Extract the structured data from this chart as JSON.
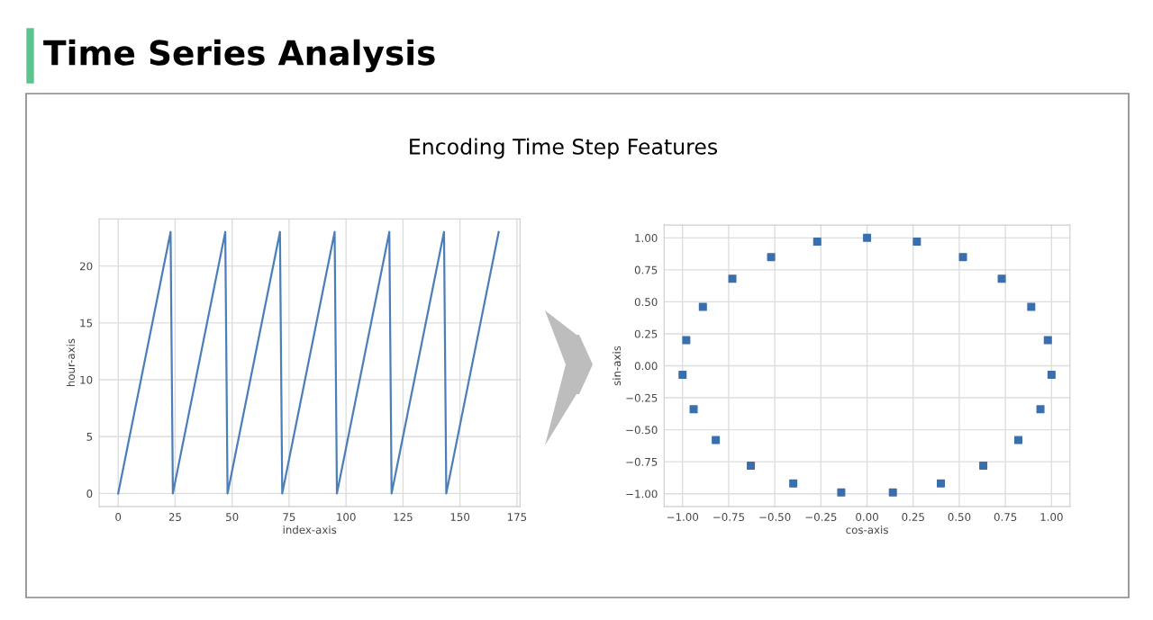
{
  "chart_data": [
    {
      "type": "line",
      "title": "Time Series Analysis",
      "subtitle": "Encoding Time Step Features",
      "xlabel": "index-axis",
      "ylabel": "hour-axis",
      "series": [
        {
          "color": "#4c7fb8",
          "x": [
            0,
            23,
            24,
            47,
            48,
            71,
            72,
            95,
            96,
            119,
            120,
            143,
            144,
            167
          ],
          "values": [
            0,
            23,
            0,
            23,
            0,
            23,
            0,
            23,
            0,
            23,
            0,
            23,
            0,
            23
          ]
        }
      ],
      "xlim": [
        -8.35,
        176.35
      ],
      "ylim": [
        -1.15,
        24.15
      ],
      "xticks": [
        0,
        25,
        50,
        75,
        100,
        125,
        150,
        175
      ],
      "yticks": [
        0,
        5,
        10,
        15,
        20
      ],
      "grid": true,
      "marker": "none",
      "line_style": "solid"
    },
    {
      "type": "scatter",
      "xlabel": "cos-axis",
      "ylabel": "sin-axis",
      "series": [
        {
          "color": "#3a6fae",
          "x": [
            0,
            0.27,
            0.52,
            0.73,
            0.89,
            0.98,
            1.0,
            0.94,
            0.82,
            0.63,
            0.4,
            0.14,
            -0.14,
            -0.4,
            -0.63,
            -0.82,
            -0.94,
            -1.0,
            -0.98,
            -0.89,
            -0.73,
            -0.52,
            -0.27
          ],
          "values": [
            1.0,
            0.97,
            0.85,
            0.68,
            0.46,
            0.2,
            -0.07,
            -0.34,
            -0.58,
            -0.78,
            -0.92,
            -0.99,
            -0.99,
            -0.92,
            -0.78,
            -0.58,
            -0.34,
            -0.07,
            0.2,
            0.46,
            0.68,
            0.85,
            0.97
          ]
        }
      ],
      "xlim": [
        -1.1,
        1.1
      ],
      "ylim": [
        -1.1,
        1.1
      ],
      "xticks": [
        {
          "value": -1.0,
          "label": "−1.00"
        },
        {
          "value": -0.75,
          "label": "−0.75"
        },
        {
          "value": -0.5,
          "label": "−0.50"
        },
        {
          "value": -0.25,
          "label": "−0.25"
        },
        {
          "value": 0.0,
          "label": "0.00"
        },
        {
          "value": 0.25,
          "label": "0.25"
        },
        {
          "value": 0.5,
          "label": "0.50"
        },
        {
          "value": 0.75,
          "label": "0.75"
        },
        {
          "value": 1.0,
          "label": "1.00"
        }
      ],
      "yticks": [
        {
          "value": -1.0,
          "label": "−1.00"
        },
        {
          "value": -0.75,
          "label": "−0.75"
        },
        {
          "value": -0.5,
          "label": "−0.50"
        },
        {
          "value": -0.25,
          "label": "−0.25"
        },
        {
          "value": 0.0,
          "label": "0.00"
        },
        {
          "value": 0.25,
          "label": "0.25"
        },
        {
          "value": 0.5,
          "label": "0.50"
        },
        {
          "value": 0.75,
          "label": "0.75"
        },
        {
          "value": 1.0,
          "label": "1.00"
        }
      ],
      "grid": true,
      "marker": "square"
    }
  ]
}
